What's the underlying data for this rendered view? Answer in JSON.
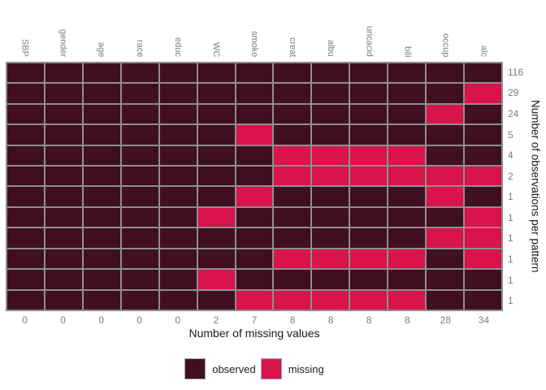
{
  "chart_data": {
    "type": "heatmap",
    "columns": [
      "SBP",
      "gender",
      "age",
      "race",
      "educ",
      "WC",
      "smoke",
      "creat",
      "albu",
      "uricacid",
      "bili",
      "occup",
      "alc"
    ],
    "row_counts": [
      116,
      29,
      24,
      5,
      4,
      2,
      1,
      1,
      1,
      1,
      1,
      1
    ],
    "column_missing_totals": [
      0,
      0,
      0,
      0,
      0,
      2,
      7,
      8,
      8,
      8,
      8,
      28,
      34
    ],
    "patterns": [
      [
        1,
        1,
        1,
        1,
        1,
        1,
        1,
        1,
        1,
        1,
        1,
        1,
        1
      ],
      [
        1,
        1,
        1,
        1,
        1,
        1,
        1,
        1,
        1,
        1,
        1,
        1,
        0
      ],
      [
        1,
        1,
        1,
        1,
        1,
        1,
        1,
        1,
        1,
        1,
        1,
        0,
        1
      ],
      [
        1,
        1,
        1,
        1,
        1,
        1,
        0,
        1,
        1,
        1,
        1,
        1,
        1
      ],
      [
        1,
        1,
        1,
        1,
        1,
        1,
        1,
        0,
        0,
        0,
        0,
        1,
        1
      ],
      [
        1,
        1,
        1,
        1,
        1,
        1,
        1,
        0,
        0,
        0,
        0,
        0,
        0
      ],
      [
        1,
        1,
        1,
        1,
        1,
        1,
        0,
        1,
        1,
        1,
        1,
        0,
        1
      ],
      [
        1,
        1,
        1,
        1,
        1,
        0,
        1,
        1,
        1,
        1,
        1,
        1,
        0
      ],
      [
        1,
        1,
        1,
        1,
        1,
        1,
        1,
        1,
        1,
        1,
        1,
        0,
        0
      ],
      [
        1,
        1,
        1,
        1,
        1,
        1,
        1,
        0,
        0,
        0,
        0,
        1,
        0
      ],
      [
        1,
        1,
        1,
        1,
        1,
        0,
        1,
        1,
        1,
        1,
        1,
        1,
        1
      ],
      [
        1,
        1,
        1,
        1,
        1,
        1,
        0,
        0,
        0,
        0,
        0,
        1,
        1
      ]
    ],
    "xlabel": "Number of missing values",
    "ylabel": "Number of observations per pattern",
    "legend": [
      {
        "label": "observed",
        "color": "#400F21"
      },
      {
        "label": "missing",
        "color": "#D9134B"
      }
    ],
    "legend_position": "bottom",
    "colors": {
      "observed": "#400F21",
      "missing": "#D9134B",
      "grid_line": "#8E8E8E",
      "tick_label": "#7D7D7D",
      "axis_title": "#1A1A1A"
    },
    "grid": true
  }
}
